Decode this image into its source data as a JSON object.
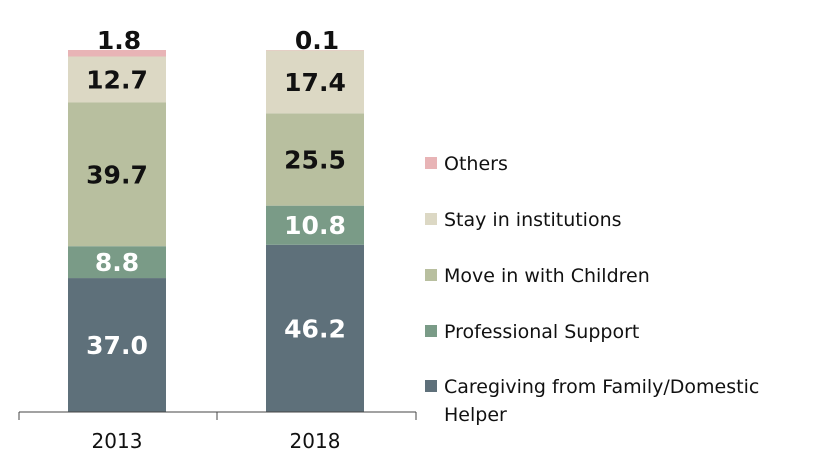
{
  "chart_data": {
    "type": "bar",
    "stacked": true,
    "categories": [
      "2013",
      "2018"
    ],
    "series": [
      {
        "name": "Caregiving from Family/Domestic Helper",
        "values": [
          37.0,
          46.2
        ],
        "labels": [
          "37.0",
          "46.2"
        ],
        "color": "#5e707a",
        "label_color": "#ffffff"
      },
      {
        "name": "Professional Support",
        "values": [
          8.8,
          10.8
        ],
        "labels": [
          "8.8",
          "10.8"
        ],
        "color": "#7a9b87",
        "label_color": "#ffffff"
      },
      {
        "name": "Move in with Children",
        "values": [
          39.7,
          25.5
        ],
        "labels": [
          "39.7",
          "25.5"
        ],
        "color": "#b8bf9f",
        "label_color": "#111111"
      },
      {
        "name": "Stay in institutions",
        "values": [
          12.7,
          17.4
        ],
        "labels": [
          "12.7",
          "17.4"
        ],
        "color": "#dcd8c4",
        "label_color": "#111111"
      },
      {
        "name": "Others",
        "values": [
          1.8,
          0.1
        ],
        "labels": [
          "1.8",
          "0.1"
        ],
        "color": "#e8b4b6",
        "label_color": "#111111"
      }
    ],
    "ylim": [
      0,
      100
    ],
    "legend_position": "right",
    "legend_order": [
      "Others",
      "Stay in institutions",
      "Move in with Children",
      "Professional Support",
      "Caregiving from Family/Domestic Helper"
    ],
    "grid": false
  }
}
